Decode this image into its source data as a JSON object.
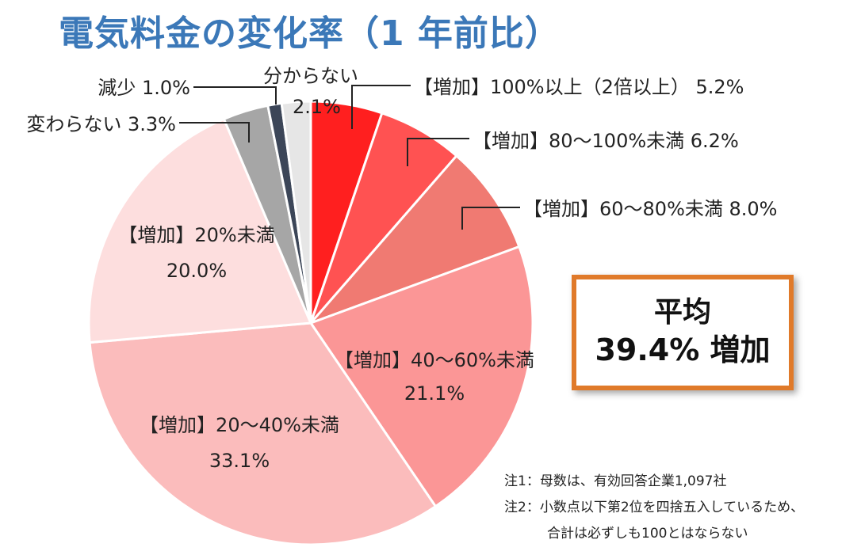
{
  "title": "電気料金の変化率（1 年前比）",
  "chart_data": {
    "type": "pie",
    "start": "12 o'clock, clockwise",
    "slices": [
      {
        "name": "【増加】100%以上（2倍以上）",
        "value": 5.2,
        "value_label": "5.2%",
        "color": "#ff1f1f"
      },
      {
        "name": "【増加】80～100%未満",
        "value": 6.2,
        "value_label": "6.2%",
        "color": "#ff5252"
      },
      {
        "name": "【増加】60～80%未満",
        "value": 8.0,
        "value_label": "8.0%",
        "color": "#f07a72"
      },
      {
        "name": "【増加】40～60%未満",
        "value": 21.1,
        "value_label": "21.1%",
        "color": "#fb9696"
      },
      {
        "name": "【増加】20～40%未満",
        "value": 33.1,
        "value_label": "33.1%",
        "color": "#fbbcbc"
      },
      {
        "name": "【増加】20%未満",
        "value": 20.0,
        "value_label": "20.0%",
        "color": "#fddede"
      },
      {
        "name": "変わらない",
        "value": 3.3,
        "value_label": "3.3%",
        "color": "#a6a6a6"
      },
      {
        "name": "減少",
        "value": 1.0,
        "value_label": "1.0%",
        "color": "#3c4658"
      },
      {
        "name": "分からない",
        "value": 2.1,
        "value_label": "2.1%",
        "color": "#e6e6e6"
      }
    ]
  },
  "summary": {
    "label": "平均",
    "value": "39.4% 増加"
  },
  "notes": [
    "注1：母数は、有効回答企業1,097社",
    "注2：小数点以下第2位を四捨五入しているため、",
    "合計は必ずしも100とはならない"
  ],
  "colors": {
    "title": "#3b78b8",
    "box_border": "#e07a2a"
  }
}
